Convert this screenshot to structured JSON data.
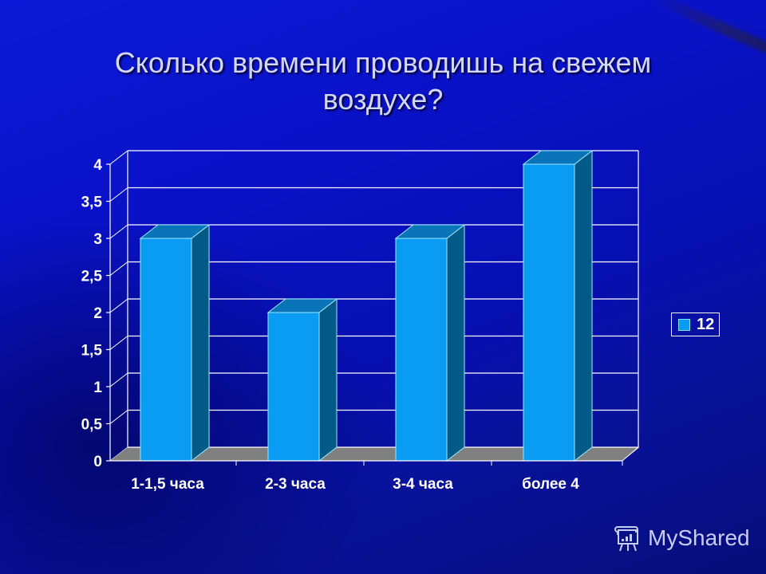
{
  "slide": {
    "title": "Сколько времени проводишь на свежем воздухе?",
    "watermark": "MyShared"
  },
  "legend": {
    "label": "12",
    "swatch_color": "#0a9cf5"
  },
  "colors": {
    "background": "#0a12c8",
    "bar_front": "#0a9cf5",
    "bar_side": "#045a86",
    "bar_top": "#0a74b8",
    "floor": "#808080",
    "gridline": "#ffffff"
  },
  "axis": {
    "y_ticks": [
      "0",
      "0,5",
      "1",
      "1,5",
      "2",
      "2,5",
      "3",
      "3,5",
      "4"
    ],
    "x_labels": [
      "1-1,5 часа",
      "2-3 часа",
      "3-4 часа",
      "более 4"
    ]
  },
  "chart_data": {
    "type": "bar",
    "title": "Сколько времени проводишь на свежем воздухе?",
    "categories": [
      "1-1,5 часа",
      "2-3 часа",
      "3-4 часа",
      "более 4"
    ],
    "series": [
      {
        "name": "12",
        "values": [
          3,
          2,
          3,
          4
        ]
      }
    ],
    "xlabel": "",
    "ylabel": "",
    "ylim": [
      0,
      4
    ],
    "y_tick_step": 0.5,
    "grid": true,
    "style": "3d-column",
    "legend_position": "right"
  }
}
